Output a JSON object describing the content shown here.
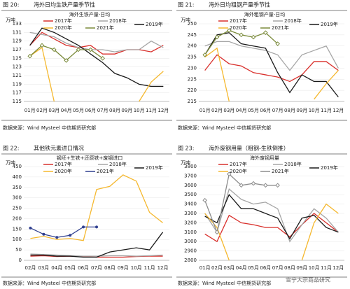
{
  "charts": [
    {
      "chart_data": {
        "type": "line",
        "figure_label": "图 20:",
        "figure_title": "海外日均生铁产量季节性",
        "title": "海外生铁产量-日均",
        "y_label": "万吨",
        "source": "数据来源：Wind Mysteel 中信期货研究部",
        "categories": [
          "01月",
          "02月",
          "03月",
          "04月",
          "05月",
          "06月",
          "07月",
          "08月",
          "09月",
          "10月",
          "11月",
          "12月"
        ],
        "ylim": [
          115,
          133
        ],
        "yticks": [
          115,
          117,
          119,
          121,
          123,
          125,
          127,
          129,
          131,
          133
        ],
        "series": [
          {
            "name": "2017年",
            "color": "#d9302c",
            "values": [
              128,
              131,
              129.5,
              128,
              127.5,
              128,
              126,
              126,
              127,
              127,
              126.5,
              128
            ]
          },
          {
            "name": "2018年",
            "color": "#a6a6a6",
            "values": [
              131,
              130.5,
              130,
              128.5,
              127.5,
              127,
              127,
              126.5,
              127,
              127,
              129,
              127.5
            ]
          },
          {
            "name": "2019年",
            "color": "#1a1a1a",
            "values": [
              128,
              132,
              131,
              129.5,
              128,
              126,
              124,
              121.5,
              120.5,
              119,
              118.5,
              118.5
            ]
          },
          {
            "name": "2020年",
            "color": "#f5b82e",
            "values": [
              125.5,
              127.5,
              115,
              null,
              null,
              null,
              null,
              null,
              null,
              115,
              119.5,
              122
            ]
          },
          {
            "name": "2021年",
            "color": "#7a8a3a",
            "marker": "diamond",
            "values": [
              125.5,
              128,
              127,
              124.5,
              127,
              127,
              125,
              null,
              null,
              null,
              null,
              null
            ]
          }
        ]
      }
    },
    {
      "chart_data": {
        "type": "line",
        "figure_label": "图 21:",
        "figure_title": "海外日均粗钢产量季节性",
        "title": "海外粗钢产量-日均",
        "y_label": "万吨",
        "source": "数据来源：Wind Mysteel 中信期货研究部",
        "categories": [
          "01月",
          "02月",
          "03月",
          "04月",
          "05月",
          "06月",
          "07月",
          "08月",
          "09月",
          "10月",
          "11月",
          "12月"
        ],
        "ylim": [
          215,
          250
        ],
        "yticks": [
          215,
          220,
          225,
          230,
          235,
          240,
          245,
          250
        ],
        "series": [
          {
            "name": "2017年",
            "color": "#d9302c",
            "values": [
              229,
              236,
              232,
              231,
              228,
              227,
              226,
              224,
              227,
              233,
              233,
              229
            ]
          },
          {
            "name": "2018年",
            "color": "#a6a6a6",
            "values": [
              240,
              242,
              242,
              240,
              239,
              238,
              236,
              229,
              236,
              238,
              240,
              230
            ]
          },
          {
            "name": "2019年",
            "color": "#1a1a1a",
            "values": [
              236,
              245,
              246,
              241,
              240,
              239,
              228,
              219,
              227,
              224,
              224,
              217
            ]
          },
          {
            "name": "2020年",
            "color": "#f5b82e",
            "values": [
              235,
              239,
              215,
              null,
              null,
              null,
              null,
              null,
              null,
              216,
              223,
              229
            ]
          },
          {
            "name": "2021年",
            "color": "#7a8a3a",
            "marker": "diamond",
            "values": [
              236,
              244,
              247,
              245,
              244,
              246,
              241,
              null,
              null,
              null,
              null,
              null
            ]
          }
        ]
      }
    },
    {
      "chart_data": {
        "type": "line",
        "figure_label": "图 22:",
        "figure_title": "其他铁元素进口情况",
        "title": "钢坯+生铁+还原铁+废钢进口",
        "y_label": "万吨",
        "source": "数据来源：Wind Mysteel 中信期货研究部",
        "categories": [
          "02月",
          "03月",
          "04月",
          "05月",
          "06月",
          "07月",
          "08月",
          "09月",
          "10月",
          "11月",
          "12月"
        ],
        "ylim": [
          0,
          450
        ],
        "yticks": [
          0,
          50,
          100,
          150,
          200,
          250,
          300,
          350,
          400,
          450
        ],
        "series": [
          {
            "name": "2017年",
            "color": "#d9302c",
            "values": [
              20,
              22,
              18,
              20,
              18,
              15,
              15,
              15,
              18,
              20,
              20
            ]
          },
          {
            "name": "2018年",
            "color": "#a6a6a6",
            "values": [
              30,
              28,
              25,
              22,
              20,
              20,
              22,
              22,
              20,
              22,
              25
            ]
          },
          {
            "name": "2019年",
            "color": "#1a1a1a",
            "values": [
              25,
              25,
              20,
              20,
              15,
              15,
              40,
              50,
              60,
              50,
              135
            ]
          },
          {
            "name": "2020年",
            "color": "#f5b82e",
            "values": [
              105,
              115,
              100,
              105,
              95,
              340,
              355,
              410,
              380,
              230,
              180
            ]
          },
          {
            "name": "2021年",
            "color": "#2f3f8f",
            "marker": "circle",
            "values": [
              155,
              125,
              110,
              120,
              160,
              160,
              null,
              null,
              null,
              null,
              null
            ]
          }
        ]
      }
    },
    {
      "chart_data": {
        "type": "line",
        "figure_label": "图 23:",
        "figure_title": "海外废钢用量（粗钢-生铁倒推）",
        "title": "海外废钢用量",
        "y_label": "万吨",
        "source": "数据来源：Wind Mysteel 中信期货研究部",
        "categories": [
          "01月",
          "02月",
          "03月",
          "04月",
          "05月",
          "06月",
          "07月",
          "08月",
          "09月",
          "10月",
          "11月",
          "12月"
        ],
        "ylim": [
          2800,
          3800
        ],
        "yticks": [
          2800,
          2900,
          3000,
          3100,
          3200,
          3300,
          3400,
          3500,
          3600,
          3700,
          3800
        ],
        "series": [
          {
            "name": "2017年",
            "color": "#d9302c",
            "values": [
              3080,
              3000,
              3280,
              3200,
              3180,
              3150,
              3150,
              3050,
              3180,
              3300,
              3200,
              3100
            ]
          },
          {
            "name": "2018年",
            "color": "#a6a6a6",
            "values": [
              3300,
              3100,
              3560,
              3450,
              3400,
              3420,
              3350,
              3000,
              3180,
              3350,
              3250,
              3100
            ]
          },
          {
            "name": "2019年",
            "color": "#1a1a1a",
            "values": [
              3270,
              3200,
              3500,
              3350,
              3350,
              3300,
              3250,
              3030,
              3250,
              3280,
              3150,
              3100
            ]
          },
          {
            "name": "2020年",
            "color": "#f5b82e",
            "values": [
              3300,
              3150,
              2800,
              null,
              null,
              null,
              null,
              null,
              2800,
              3200,
              3400,
              3300
            ]
          },
          {
            "name": "2021年",
            "color": "#8c8c8c",
            "marker": "diamond",
            "values": [
              3440,
              3100,
              3720,
              3600,
              3620,
              3600,
              3600,
              null,
              null,
              null,
              null,
              null
            ]
          }
        ]
      }
    }
  ],
  "watermark": "雪宁大宗商品研究"
}
